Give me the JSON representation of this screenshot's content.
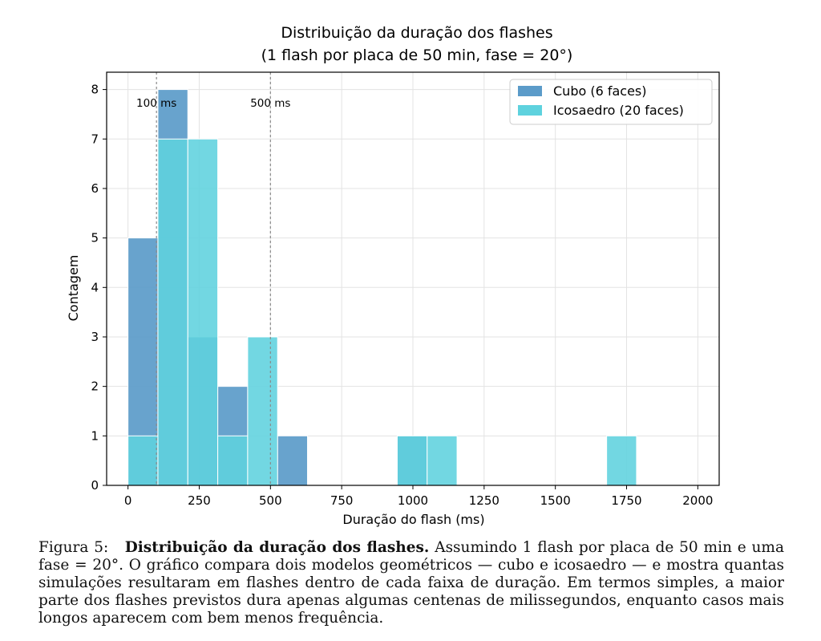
{
  "chart_data": {
    "type": "bar",
    "title": "Distribuição da duração dos flashes",
    "subtitle": "(1 flash por placa de 50 min, fase = 20°)",
    "xlabel": "Duração do flash (ms)",
    "ylabel": "Contagem",
    "xlim": [
      -75,
      2075
    ],
    "ylim": [
      0,
      8.35
    ],
    "xticks": [
      0,
      250,
      500,
      750,
      1000,
      1250,
      1500,
      1750,
      2000
    ],
    "yticks": [
      0,
      1,
      2,
      3,
      4,
      5,
      6,
      7,
      8
    ],
    "bin_edges": [
      0,
      105,
      210,
      315,
      420,
      525,
      630,
      735,
      840,
      945,
      1050,
      1155,
      1260,
      1365,
      1470,
      1575,
      1680,
      1785,
      1890,
      1995
    ],
    "series": [
      {
        "name": "Cubo (6 faces)",
        "color": "#5b9bc9",
        "values": [
          5,
          8,
          3,
          2,
          0,
          1,
          0,
          0,
          0,
          1,
          0,
          0,
          0,
          0,
          0,
          0,
          0,
          0,
          0
        ]
      },
      {
        "name": "Icosaedro (20 faces)",
        "color": "#5ed2de",
        "values": [
          1,
          7,
          7,
          1,
          3,
          0,
          0,
          0,
          0,
          1,
          1,
          0,
          0,
          0,
          0,
          0,
          1,
          0,
          0
        ]
      }
    ],
    "vlines": [
      {
        "x": 100,
        "label": "100 ms"
      },
      {
        "x": 500,
        "label": "500 ms"
      }
    ],
    "grid": true,
    "legend_position": "top-right"
  },
  "caption": {
    "label": "Figura 5:",
    "title": "Distribuição da duração dos flashes.",
    "text": "Assumindo 1 flash por placa de 50 min e uma fase = 20°. O gráfico compara dois modelos geométricos — cubo e icosaedro — e mostra quantas simulações resultaram em flashes dentro de cada faixa de duração. Em termos simples, a maior parte dos flashes previstos dura apenas algumas centenas de milissegundos, enquanto casos mais longos aparecem com bem menos frequência."
  }
}
